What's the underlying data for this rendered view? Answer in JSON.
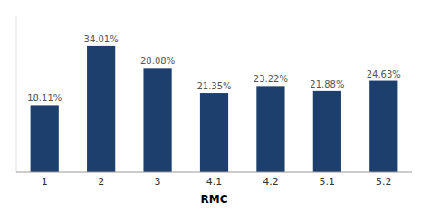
{
  "chart_data": {
    "type": "bar",
    "xlabel": "RMC",
    "categories": [
      "1",
      "2",
      "3",
      "4.1",
      "4.2",
      "5.1",
      "5.2"
    ],
    "values": [
      18.11,
      34.01,
      28.08,
      21.35,
      23.22,
      21.88,
      24.63
    ],
    "value_labels": [
      "18.11%",
      "34.01%",
      "28.08%",
      "21.35%",
      "23.22%",
      "21.88%",
      "24.63%"
    ],
    "color": "#1d3f6e",
    "ylim": [
      0,
      42
    ],
    "data_labels": true,
    "tick_labels": "x",
    "grid": false
  }
}
